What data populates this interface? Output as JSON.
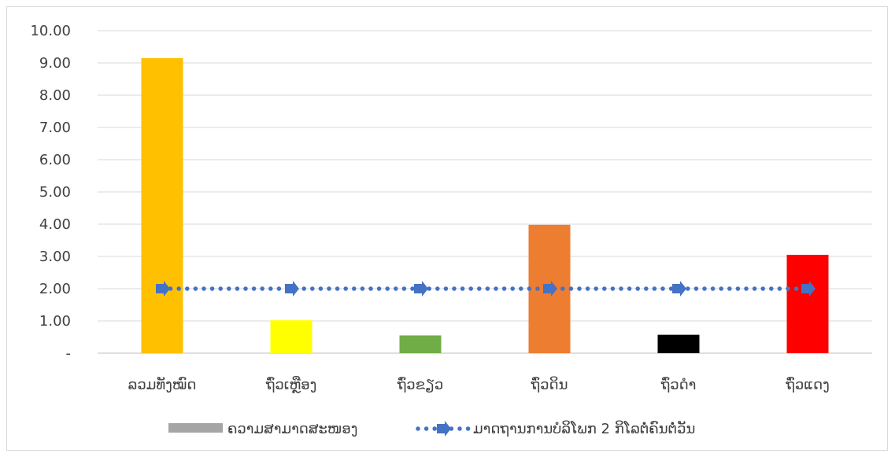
{
  "chart_data": {
    "type": "bar",
    "categories": [
      "ລວມທັງໝົດ",
      "ຖົ່ວເຫຼືອງ",
      "ຖົ່ວຂຽວ",
      "ຖົ່ວດິນ",
      "ຖົ່ວດຳ",
      "ຖົ່ວແດງ"
    ],
    "series": [
      {
        "name": "ຄວາມສາມາດສະໜອງ",
        "type": "bar",
        "values": [
          9.15,
          1.02,
          0.55,
          3.98,
          0.57,
          3.05
        ],
        "colors": [
          "#FFC000",
          "#FFFF00",
          "#70AD47",
          "#ED7D31",
          "#000000",
          "#FF0000"
        ]
      },
      {
        "name": "ມາດຖານການບໍລິໂພກ 2 ກິໂລຕໍ່ຄົນຕໍ່ວັນ",
        "type": "line",
        "style": "dotted",
        "values": [
          2.0,
          2.0,
          2.0,
          2.0,
          2.0,
          2.0
        ],
        "color": "#4472C4"
      }
    ],
    "y_ticks": [
      "-",
      "1.00",
      "2.00",
      "3.00",
      "4.00",
      "5.00",
      "6.00",
      "7.00",
      "8.00",
      "9.00",
      "10.00"
    ],
    "ylim": [
      0,
      10
    ],
    "grid": true,
    "legend_position": "bottom",
    "legend_swatch_color": "#A5A5A5",
    "title": "",
    "xlabel": "",
    "ylabel": ""
  }
}
